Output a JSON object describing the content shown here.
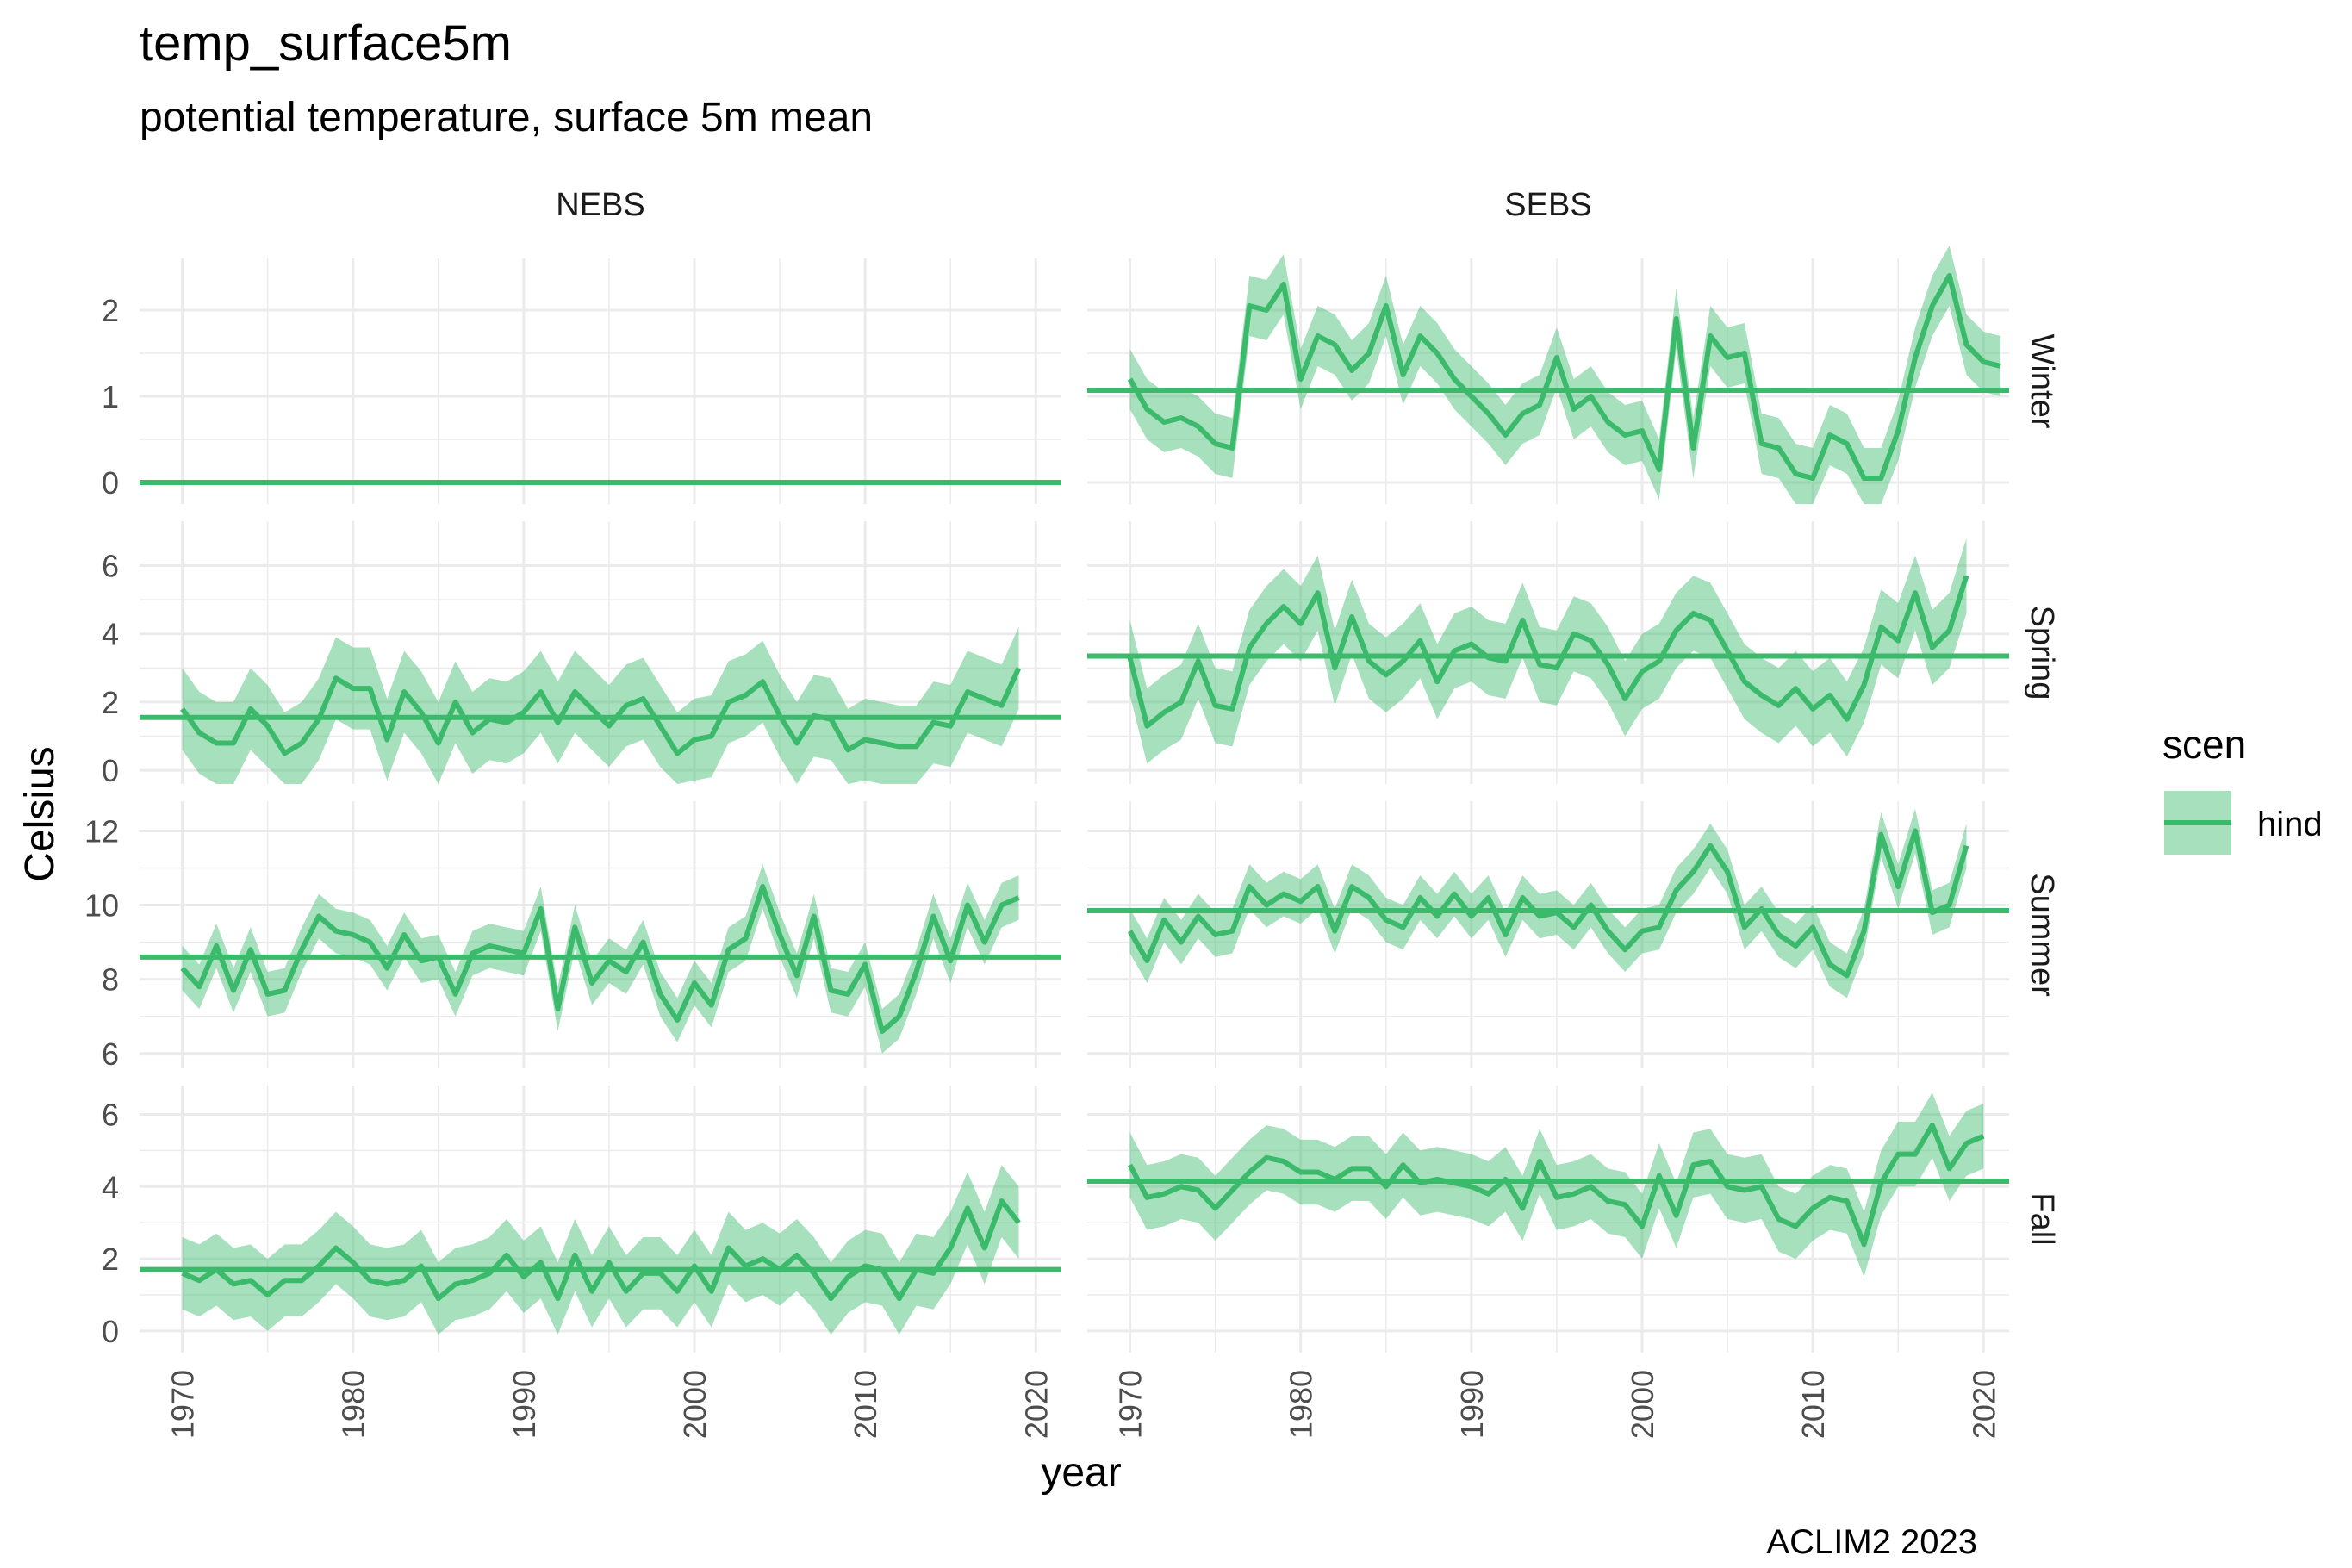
{
  "title": "temp_surface5m",
  "subtitle": "potential temperature, surface 5m mean",
  "caption": "ACLIM2 2023",
  "xlabel": "year",
  "ylabel": "Celsius",
  "legend": {
    "title": "scen",
    "label": "hind",
    "position": "right"
  },
  "colors": {
    "series": "#3cba6b",
    "band": "#3cba6b",
    "grid": "#ebebeb",
    "text": "#4d4d4d"
  },
  "chart_data": {
    "type": "line",
    "facet_cols": [
      "NEBS",
      "SEBS"
    ],
    "facet_rows": [
      "Winter",
      "Spring",
      "Summer",
      "Fall"
    ],
    "x_ticks": [
      1970,
      1980,
      1990,
      2000,
      2010,
      2020
    ],
    "xlim": [
      1967.5,
      2021.5
    ],
    "x_start": 1970,
    "rows": [
      {
        "name": "Winter",
        "ylim": [
          -0.25,
          2.6
        ],
        "y_ticks": [
          0,
          1,
          2
        ]
      },
      {
        "name": "Spring",
        "ylim": [
          -0.4,
          7.3
        ],
        "y_ticks": [
          0,
          2,
          4,
          6
        ]
      },
      {
        "name": "Summer",
        "ylim": [
          5.6,
          12.8
        ],
        "y_ticks": [
          6,
          8,
          10,
          12
        ]
      },
      {
        "name": "Fall",
        "ylim": [
          -0.6,
          6.8
        ],
        "y_ticks": [
          0,
          2,
          4,
          6
        ]
      }
    ],
    "panels": [
      {
        "col": "NEBS",
        "row": "Winter",
        "mean": 0,
        "values": [
          0,
          0,
          0,
          0,
          0,
          0,
          0,
          0,
          0,
          0,
          0,
          0,
          0,
          0,
          0,
          0,
          0,
          0,
          0,
          0,
          0,
          0,
          0,
          0,
          0,
          0,
          0,
          0,
          0,
          0,
          0,
          0,
          0,
          0,
          0,
          0,
          0,
          0,
          0,
          0,
          0,
          0,
          0,
          0,
          0,
          0,
          0,
          0,
          0,
          0
        ],
        "band": 0
      },
      {
        "col": "SEBS",
        "row": "Winter",
        "mean": 1.07,
        "values": [
          1.2,
          0.85,
          0.7,
          0.75,
          0.65,
          0.45,
          0.4,
          2.05,
          2.0,
          2.3,
          1.2,
          1.7,
          1.6,
          1.3,
          1.5,
          2.05,
          1.25,
          1.7,
          1.5,
          1.2,
          1.0,
          0.8,
          0.55,
          0.8,
          0.9,
          1.45,
          0.85,
          1.0,
          0.7,
          0.55,
          0.6,
          0.15,
          1.9,
          0.4,
          1.7,
          1.45,
          1.5,
          0.45,
          0.4,
          0.1,
          0.05,
          0.55,
          0.45,
          0.05,
          0.05,
          0.6,
          1.45,
          2.05,
          2.4,
          1.6,
          1.4,
          1.35
        ],
        "band": 0.35
      },
      {
        "col": "NEBS",
        "row": "Spring",
        "mean": 1.55,
        "values": [
          1.8,
          1.1,
          0.8,
          0.8,
          1.8,
          1.3,
          0.5,
          0.8,
          1.5,
          2.7,
          2.4,
          2.4,
          0.9,
          2.3,
          1.7,
          0.8,
          2.0,
          1.1,
          1.5,
          1.4,
          1.7,
          2.3,
          1.4,
          2.3,
          1.8,
          1.3,
          1.9,
          2.1,
          1.3,
          0.5,
          0.9,
          1.0,
          2.0,
          2.2,
          2.6,
          1.6,
          0.8,
          1.6,
          1.5,
          0.6,
          0.9,
          0.8,
          0.7,
          0.7,
          1.4,
          1.3,
          2.3,
          2.1,
          1.9,
          3.0
        ],
        "band": 1.2
      },
      {
        "col": "SEBS",
        "row": "Spring",
        "mean": 3.35,
        "values": [
          3.3,
          1.3,
          1.7,
          2.0,
          3.2,
          1.9,
          1.8,
          3.6,
          4.3,
          4.8,
          4.3,
          5.2,
          3.0,
          4.5,
          3.2,
          2.8,
          3.2,
          3.8,
          2.6,
          3.5,
          3.7,
          3.3,
          3.2,
          4.4,
          3.1,
          3.0,
          4.0,
          3.8,
          3.1,
          2.1,
          2.9,
          3.2,
          4.1,
          4.6,
          4.4,
          3.5,
          2.6,
          2.2,
          1.9,
          2.4,
          1.8,
          2.2,
          1.5,
          2.5,
          4.2,
          3.8,
          5.2,
          3.6,
          4.1,
          5.7
        ],
        "band": 1.1
      },
      {
        "col": "NEBS",
        "row": "Summer",
        "mean": 8.6,
        "values": [
          8.3,
          7.8,
          8.9,
          7.7,
          8.8,
          7.6,
          7.7,
          8.8,
          9.7,
          9.3,
          9.2,
          9.0,
          8.3,
          9.2,
          8.5,
          8.6,
          7.6,
          8.7,
          8.9,
          8.8,
          8.7,
          9.9,
          7.2,
          9.4,
          7.9,
          8.5,
          8.2,
          9.0,
          7.6,
          6.9,
          7.9,
          7.3,
          8.8,
          9.1,
          10.5,
          9.2,
          8.1,
          9.7,
          7.7,
          7.6,
          8.4,
          6.6,
          7.0,
          8.2,
          9.7,
          8.5,
          10.0,
          9.0,
          10.0,
          10.2
        ],
        "band": 0.6
      },
      {
        "col": "SEBS",
        "row": "Summer",
        "mean": 9.85,
        "values": [
          9.3,
          8.5,
          9.6,
          9.0,
          9.7,
          9.2,
          9.3,
          10.5,
          10.0,
          10.3,
          10.1,
          10.5,
          9.3,
          10.5,
          10.2,
          9.6,
          9.4,
          10.2,
          9.7,
          10.3,
          9.7,
          10.2,
          9.2,
          10.2,
          9.7,
          9.8,
          9.4,
          10.0,
          9.3,
          8.8,
          9.3,
          9.4,
          10.4,
          10.9,
          11.6,
          10.9,
          9.4,
          9.9,
          9.2,
          8.9,
          9.4,
          8.4,
          8.1,
          9.3,
          11.9,
          10.5,
          12.0,
          9.8,
          10.0,
          11.6
        ],
        "band": 0.6
      },
      {
        "col": "NEBS",
        "row": "Fall",
        "mean": 1.7,
        "values": [
          1.6,
          1.4,
          1.7,
          1.3,
          1.4,
          1.0,
          1.4,
          1.4,
          1.8,
          2.3,
          1.9,
          1.4,
          1.3,
          1.4,
          1.8,
          0.9,
          1.3,
          1.4,
          1.6,
          2.1,
          1.5,
          1.9,
          0.9,
          2.1,
          1.1,
          1.9,
          1.1,
          1.6,
          1.6,
          1.1,
          1.8,
          1.1,
          2.3,
          1.8,
          2.0,
          1.7,
          2.1,
          1.6,
          0.9,
          1.5,
          1.8,
          1.7,
          0.9,
          1.7,
          1.6,
          2.3,
          3.4,
          2.3,
          3.6,
          3.0
        ],
        "band": 1.0
      },
      {
        "col": "SEBS",
        "row": "Fall",
        "mean": 4.15,
        "values": [
          4.6,
          3.7,
          3.8,
          4.0,
          3.9,
          3.4,
          3.9,
          4.4,
          4.8,
          4.7,
          4.4,
          4.4,
          4.2,
          4.5,
          4.5,
          4.0,
          4.6,
          4.1,
          4.2,
          4.1,
          4.0,
          3.8,
          4.2,
          3.4,
          4.7,
          3.7,
          3.8,
          4.0,
          3.6,
          3.5,
          2.9,
          4.3,
          3.2,
          4.6,
          4.7,
          4.0,
          3.9,
          4.0,
          3.1,
          2.9,
          3.4,
          3.7,
          3.6,
          2.4,
          4.1,
          4.9,
          4.9,
          5.7,
          4.5,
          5.2,
          5.4
        ],
        "band": 0.9
      }
    ]
  }
}
